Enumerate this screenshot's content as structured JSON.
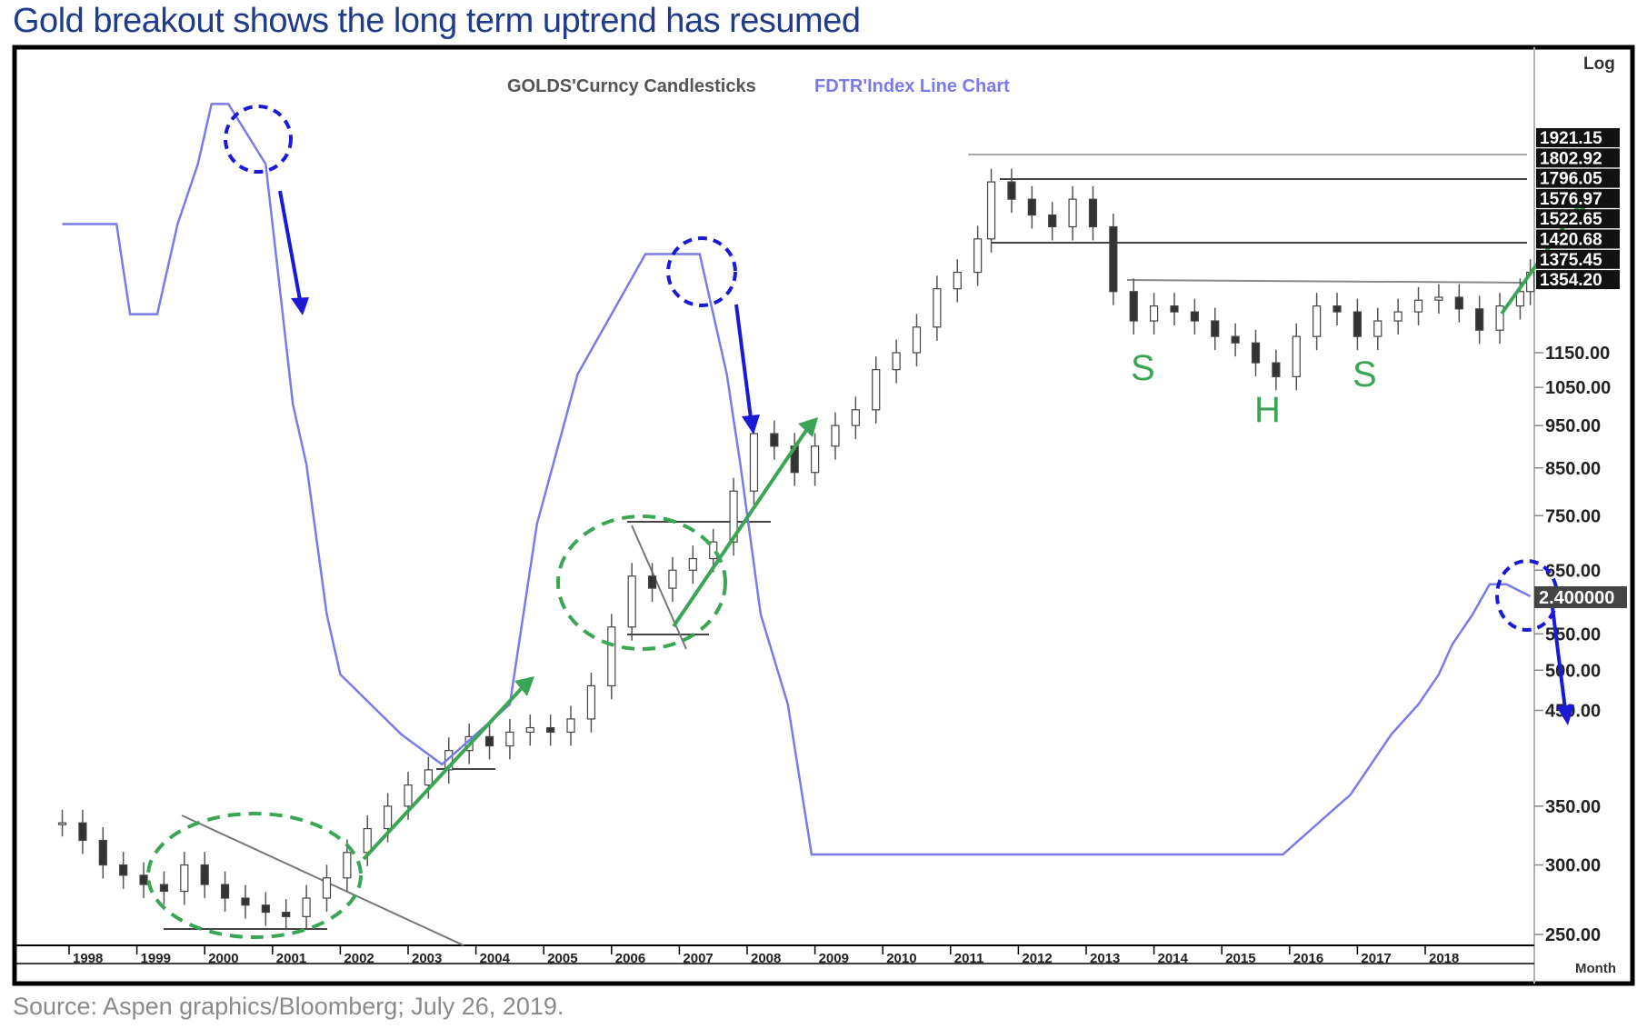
{
  "title": "Gold breakout shows the long term uptrend has resumed",
  "source": "Source: Aspen graphics/Bloomberg; July 26, 2019.",
  "colors": {
    "gold_series": "#333333",
    "fdtr_series": "#7a7ae8",
    "blue_annotation": "#1a1ad6",
    "green_annotation": "#3aa655",
    "frame": "#000000"
  },
  "chart_data": {
    "type": "line",
    "legend": [
      {
        "label": "GOLDS'Curncy  Candlesticks",
        "color": "#555555"
      },
      {
        "label": "FDTR'Index  Line  Chart",
        "color": "#7a7ae8"
      }
    ],
    "scale_label": "Log",
    "xaxis_unit_label": "Month",
    "x_tick_labels": [
      "1998",
      "1999",
      "2000",
      "2001",
      "2002",
      "2003",
      "2004",
      "2005",
      "2006",
      "2007",
      "2008",
      "2009",
      "2010",
      "2011",
      "2012",
      "2013",
      "2014",
      "2015",
      "2016",
      "2017",
      "2018"
    ],
    "y_tick_labels": [
      "1150.00",
      "1050.00",
      "950.00",
      "850.00",
      "750.00",
      "650.00",
      "550.00",
      "500.00",
      "450.00",
      "350.00",
      "300.00",
      "250.00"
    ],
    "price_boxes": [
      "1921.15",
      "1802.92",
      "1796.05",
      "1576.97",
      "1522.65",
      "1420.68",
      "1375.45",
      "1354.20"
    ],
    "fdtr_current_box": "2.400000",
    "series": [
      {
        "name": "GOLDS'Curncy",
        "x": [
          1997.9,
          1998.2,
          1998.5,
          1998.8,
          1999.1,
          1999.4,
          1999.7,
          2000.0,
          2000.3,
          2000.6,
          2000.9,
          2001.2,
          2001.5,
          2001.8,
          2002.1,
          2002.4,
          2002.7,
          2003.0,
          2003.3,
          2003.6,
          2003.9,
          2004.2,
          2004.5,
          2004.8,
          2005.1,
          2005.4,
          2005.7,
          2006.0,
          2006.3,
          2006.6,
          2006.9,
          2007.2,
          2007.5,
          2007.8,
          2008.1,
          2008.4,
          2008.7,
          2009.0,
          2009.3,
          2009.6,
          2009.9,
          2010.2,
          2010.5,
          2010.8,
          2011.1,
          2011.4,
          2011.6,
          2011.9,
          2012.2,
          2012.5,
          2012.8,
          2013.1,
          2013.4,
          2013.7,
          2014.0,
          2014.3,
          2014.6,
          2014.9,
          2015.2,
          2015.5,
          2015.8,
          2016.1,
          2016.4,
          2016.7,
          2017.0,
          2017.3,
          2017.6,
          2017.9,
          2018.2,
          2018.5,
          2018.8,
          2019.1,
          2019.4,
          2019.55
        ],
        "values": [
          335,
          320,
          300,
          292,
          285,
          280,
          300,
          285,
          275,
          270,
          265,
          262,
          275,
          290,
          310,
          330,
          350,
          370,
          385,
          405,
          420,
          410,
          425,
          430,
          425,
          440,
          480,
          560,
          640,
          620,
          650,
          670,
          700,
          800,
          930,
          900,
          840,
          900,
          950,
          990,
          1100,
          1150,
          1230,
          1360,
          1420,
          1550,
          1800,
          1720,
          1650,
          1600,
          1720,
          1600,
          1350,
          1250,
          1300,
          1280,
          1250,
          1200,
          1180,
          1120,
          1080,
          1200,
          1300,
          1280,
          1200,
          1250,
          1280,
          1320,
          1330,
          1290,
          1220,
          1300,
          1350,
          1420
        ]
      },
      {
        "name": "FDTR'Index",
        "x": [
          1997.9,
          1998.7,
          1998.9,
          1999.3,
          1999.6,
          1999.9,
          2000.1,
          2000.35,
          2000.9,
          2001.1,
          2001.3,
          2001.5,
          2001.8,
          2002.0,
          2002.9,
          2003.5,
          2004.5,
          2004.7,
          2004.9,
          2005.5,
          2006.0,
          2006.5,
          2007.3,
          2007.5,
          2007.7,
          2007.9,
          2008.2,
          2008.6,
          2008.95,
          2015.9,
          2016.4,
          2016.9,
          2017.2,
          2017.5,
          2017.9,
          2018.2,
          2018.4,
          2018.7,
          2018.95,
          2019.2,
          2019.55
        ],
        "values": [
          5.5,
          5.5,
          4.75,
          4.75,
          5.5,
          6.0,
          6.5,
          6.5,
          6.0,
          5.0,
          4.0,
          3.5,
          2.25,
          1.75,
          1.25,
          1.0,
          1.5,
          2.25,
          3.0,
          4.25,
          4.75,
          5.25,
          5.25,
          4.75,
          4.25,
          3.5,
          2.25,
          1.5,
          0.25,
          0.25,
          0.5,
          0.75,
          1.0,
          1.25,
          1.5,
          1.75,
          2.0,
          2.25,
          2.5,
          2.5,
          2.4
        ]
      }
    ]
  },
  "annotations": {
    "hs_letters": [
      "S",
      "H",
      "S"
    ]
  }
}
